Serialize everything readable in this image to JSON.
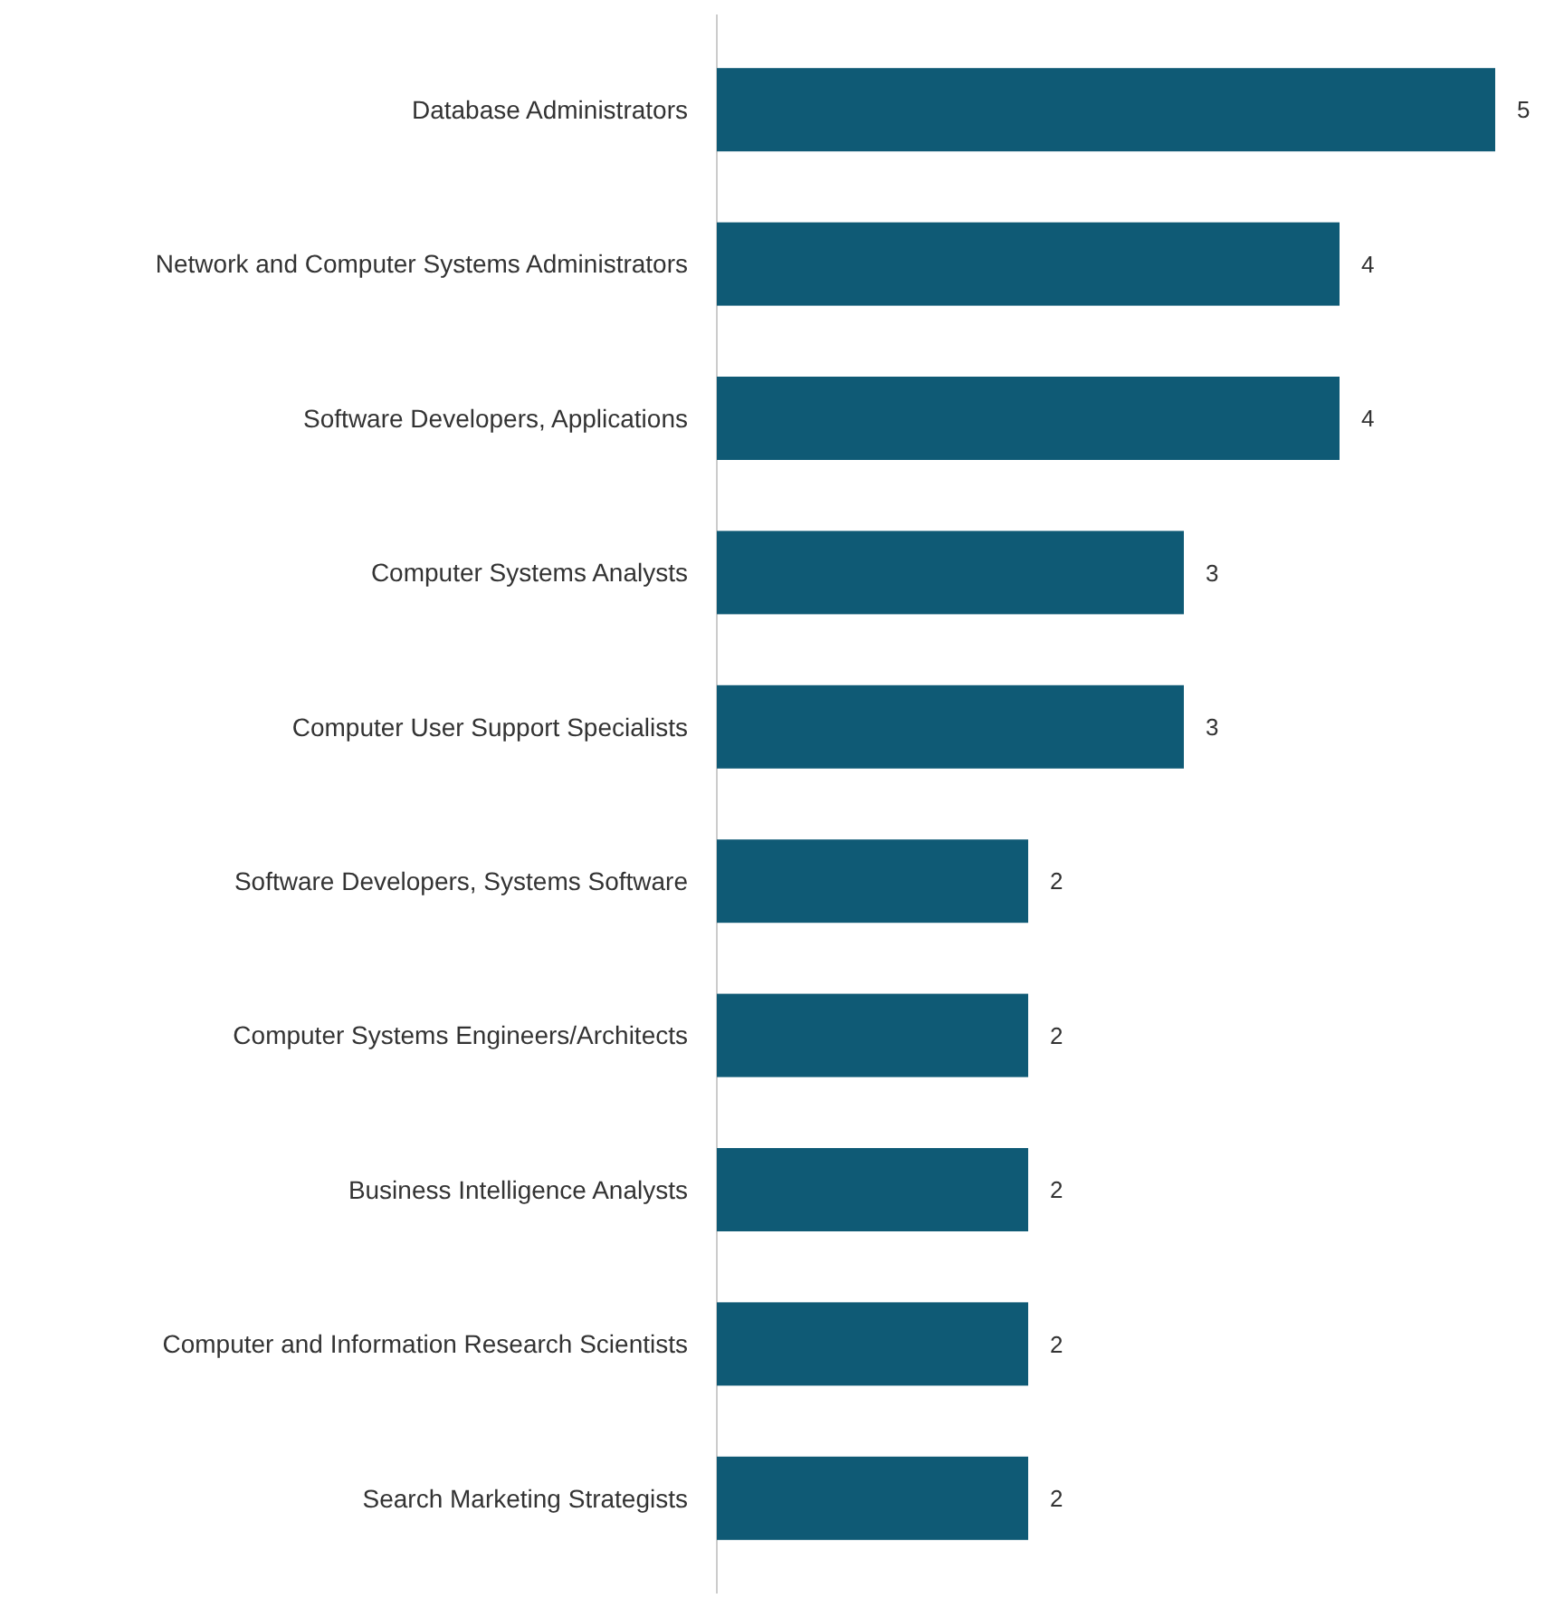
{
  "chart_data": {
    "type": "bar",
    "orientation": "horizontal",
    "categories": [
      "Database Administrators",
      "Network and Computer Systems Administrators",
      "Software Developers, Applications",
      "Computer Systems Analysts",
      "Computer User Support Specialists",
      "Software Developers, Systems Software",
      "Computer Systems Engineers/Architects",
      "Business Intelligence Analysts",
      "Computer and Information Research Scientists",
      "Search Marketing Strategists"
    ],
    "values": [
      5,
      4,
      4,
      3,
      3,
      2,
      2,
      2,
      2,
      2
    ],
    "color": "#0f5a75",
    "data_labels": true
  }
}
